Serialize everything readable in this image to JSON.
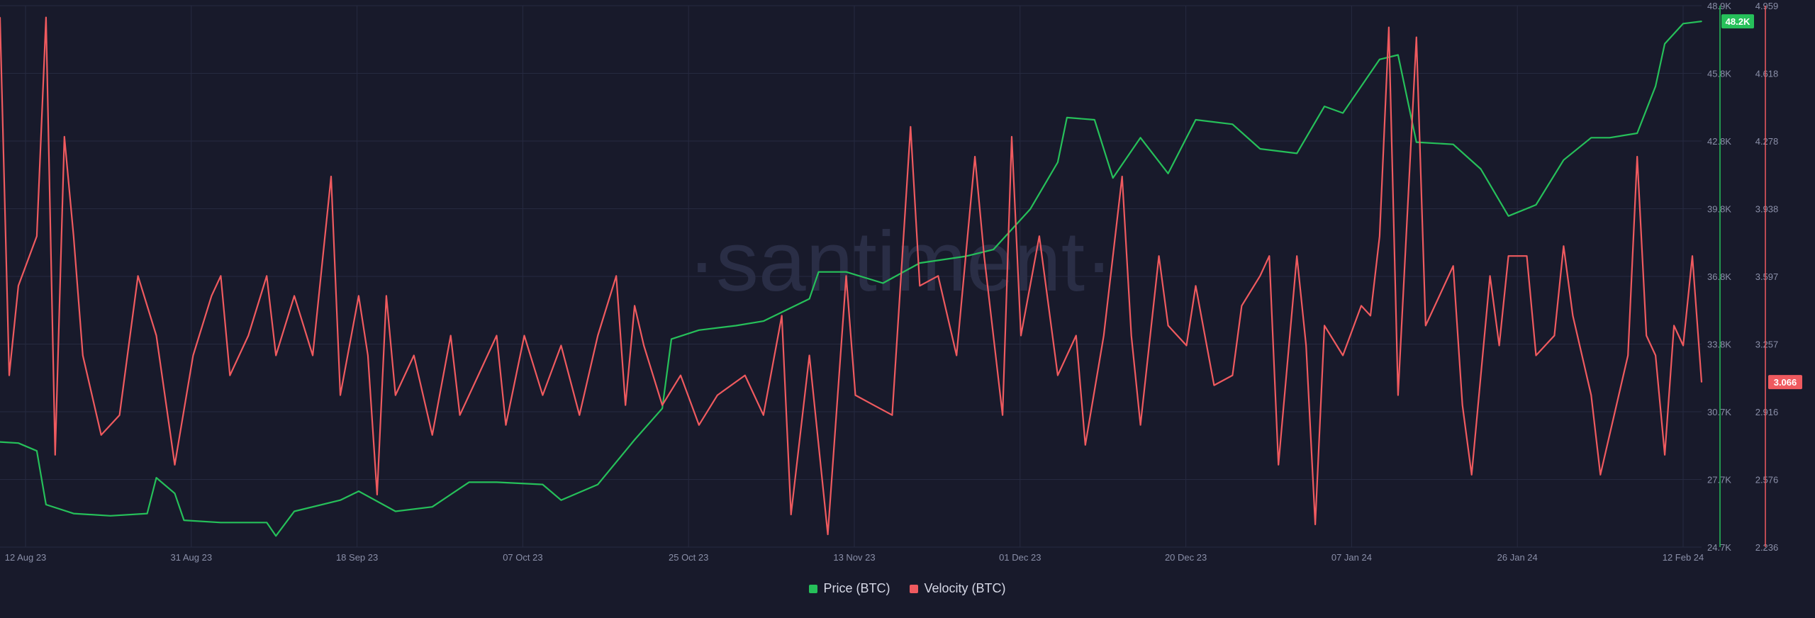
{
  "watermark": "·santiment·",
  "colors": {
    "background": "#181a2b",
    "grid": "#262a40",
    "price": "#26c05a",
    "velocity": "#ef5a5f",
    "axis_text": "#8a8fa8"
  },
  "price_axis_ticks": [
    "48.9K",
    "45.8K",
    "42.8K",
    "39.8K",
    "36.8K",
    "33.8K",
    "30.7K",
    "27.7K",
    "24.7K"
  ],
  "velocity_axis_ticks": [
    "4.959",
    "4.618",
    "4.278",
    "3.938",
    "3.597",
    "3.257",
    "2.916",
    "2.576",
    "2.236"
  ],
  "price_badge": "48.2K",
  "velocity_badge": "3.066",
  "legend": [
    {
      "label": "Price (BTC)",
      "color": "#26c05a"
    },
    {
      "label": "Velocity (BTC)",
      "color": "#ef5a5f"
    }
  ],
  "chart_data": {
    "type": "line",
    "x_start": "2023-08-12",
    "x_end": "2024-02-13",
    "x_tick_labels": [
      "12 Aug 23",
      "31 Aug 23",
      "18 Sep 23",
      "07 Oct 23",
      "25 Oct 23",
      "13 Nov 23",
      "01 Dec 23",
      "20 Dec 23",
      "07 Jan 24",
      "26 Jan 24",
      "12 Feb 24"
    ],
    "y_left_range": [
      24700,
      48900
    ],
    "y_right_range": [
      2.236,
      4.959
    ],
    "grid": true,
    "legend_position": "bottom",
    "series": [
      {
        "name": "Price (BTC)",
        "axis": "left",
        "points": [
          [
            "2023-08-12",
            29400
          ],
          [
            "2023-08-14",
            29350
          ],
          [
            "2023-08-16",
            29000
          ],
          [
            "2023-08-17",
            26600
          ],
          [
            "2023-08-20",
            26200
          ],
          [
            "2023-08-24",
            26100
          ],
          [
            "2023-08-28",
            26200
          ],
          [
            "2023-08-29",
            27800
          ],
          [
            "2023-08-31",
            27100
          ],
          [
            "2023-09-01",
            25900
          ],
          [
            "2023-09-05",
            25800
          ],
          [
            "2023-09-10",
            25800
          ],
          [
            "2023-09-11",
            25200
          ],
          [
            "2023-09-13",
            26300
          ],
          [
            "2023-09-18",
            26800
          ],
          [
            "2023-09-20",
            27200
          ],
          [
            "2023-09-24",
            26300
          ],
          [
            "2023-09-28",
            26500
          ],
          [
            "2023-10-02",
            27600
          ],
          [
            "2023-10-05",
            27600
          ],
          [
            "2023-10-10",
            27500
          ],
          [
            "2023-10-12",
            26800
          ],
          [
            "2023-10-16",
            27500
          ],
          [
            "2023-10-20",
            29500
          ],
          [
            "2023-10-23",
            30900
          ],
          [
            "2023-10-24",
            34000
          ],
          [
            "2023-10-27",
            34400
          ],
          [
            "2023-10-31",
            34600
          ],
          [
            "2023-11-03",
            34800
          ],
          [
            "2023-11-08",
            35800
          ],
          [
            "2023-11-09",
            37000
          ],
          [
            "2023-11-12",
            37000
          ],
          [
            "2023-11-16",
            36500
          ],
          [
            "2023-11-20",
            37400
          ],
          [
            "2023-11-25",
            37700
          ],
          [
            "2023-11-28",
            38000
          ],
          [
            "2023-12-02",
            39800
          ],
          [
            "2023-12-05",
            41900
          ],
          [
            "2023-12-06",
            43900
          ],
          [
            "2023-12-09",
            43800
          ],
          [
            "2023-12-11",
            41200
          ],
          [
            "2023-12-14",
            43000
          ],
          [
            "2023-12-17",
            41400
          ],
          [
            "2023-12-20",
            43800
          ],
          [
            "2023-12-24",
            43600
          ],
          [
            "2023-12-27",
            42500
          ],
          [
            "2023-12-31",
            42300
          ],
          [
            "2024-01-03",
            44400
          ],
          [
            "2024-01-05",
            44100
          ],
          [
            "2024-01-09",
            46500
          ],
          [
            "2024-01-11",
            46700
          ],
          [
            "2024-01-13",
            42800
          ],
          [
            "2024-01-17",
            42700
          ],
          [
            "2024-01-20",
            41600
          ],
          [
            "2024-01-23",
            39500
          ],
          [
            "2024-01-26",
            40000
          ],
          [
            "2024-01-29",
            42000
          ],
          [
            "2024-02-01",
            43000
          ],
          [
            "2024-02-03",
            43000
          ],
          [
            "2024-02-06",
            43200
          ],
          [
            "2024-02-08",
            45300
          ],
          [
            "2024-02-09",
            47200
          ],
          [
            "2024-02-11",
            48100
          ],
          [
            "2024-02-13",
            48200
          ]
        ]
      },
      {
        "name": "Velocity (BTC)",
        "axis": "right",
        "points": [
          [
            "2023-08-12",
            4.9
          ],
          [
            "2023-08-13",
            3.1
          ],
          [
            "2023-08-14",
            3.55
          ],
          [
            "2023-08-16",
            3.8
          ],
          [
            "2023-08-17",
            4.9
          ],
          [
            "2023-08-18",
            2.7
          ],
          [
            "2023-08-19",
            4.3
          ],
          [
            "2023-08-20",
            3.8
          ],
          [
            "2023-08-21",
            3.2
          ],
          [
            "2023-08-23",
            2.8
          ],
          [
            "2023-08-25",
            2.9
          ],
          [
            "2023-08-27",
            3.6
          ],
          [
            "2023-08-29",
            3.3
          ],
          [
            "2023-08-31",
            2.65
          ],
          [
            "2023-09-02",
            3.2
          ],
          [
            "2023-09-04",
            3.5
          ],
          [
            "2023-09-05",
            3.6
          ],
          [
            "2023-09-06",
            3.1
          ],
          [
            "2023-09-08",
            3.3
          ],
          [
            "2023-09-10",
            3.6
          ],
          [
            "2023-09-11",
            3.2
          ],
          [
            "2023-09-13",
            3.5
          ],
          [
            "2023-09-15",
            3.2
          ],
          [
            "2023-09-17",
            4.1
          ],
          [
            "2023-09-18",
            3.0
          ],
          [
            "2023-09-20",
            3.5
          ],
          [
            "2023-09-21",
            3.2
          ],
          [
            "2023-09-22",
            2.5
          ],
          [
            "2023-09-23",
            3.5
          ],
          [
            "2023-09-24",
            3.0
          ],
          [
            "2023-09-26",
            3.2
          ],
          [
            "2023-09-28",
            2.8
          ],
          [
            "2023-09-30",
            3.3
          ],
          [
            "2023-10-01",
            2.9
          ],
          [
            "2023-10-03",
            3.1
          ],
          [
            "2023-10-05",
            3.3
          ],
          [
            "2023-10-06",
            2.85
          ],
          [
            "2023-10-08",
            3.3
          ],
          [
            "2023-10-10",
            3.0
          ],
          [
            "2023-10-12",
            3.25
          ],
          [
            "2023-10-14",
            2.9
          ],
          [
            "2023-10-16",
            3.3
          ],
          [
            "2023-10-18",
            3.6
          ],
          [
            "2023-10-19",
            2.95
          ],
          [
            "2023-10-20",
            3.45
          ],
          [
            "2023-10-21",
            3.25
          ],
          [
            "2023-10-23",
            2.95
          ],
          [
            "2023-10-25",
            3.1
          ],
          [
            "2023-10-27",
            2.85
          ],
          [
            "2023-10-29",
            3.0
          ],
          [
            "2023-11-01",
            3.1
          ],
          [
            "2023-11-03",
            2.9
          ],
          [
            "2023-11-05",
            3.4
          ],
          [
            "2023-11-06",
            2.4
          ],
          [
            "2023-11-08",
            3.2
          ],
          [
            "2023-11-10",
            2.3
          ],
          [
            "2023-11-12",
            3.6
          ],
          [
            "2023-11-13",
            3.0
          ],
          [
            "2023-11-15",
            2.95
          ],
          [
            "2023-11-17",
            2.9
          ],
          [
            "2023-11-19",
            4.35
          ],
          [
            "2023-11-20",
            3.55
          ],
          [
            "2023-11-22",
            3.6
          ],
          [
            "2023-11-24",
            3.2
          ],
          [
            "2023-11-26",
            4.2
          ],
          [
            "2023-11-27",
            3.7
          ],
          [
            "2023-11-29",
            2.9
          ],
          [
            "2023-11-30",
            4.3
          ],
          [
            "2023-12-01",
            3.3
          ],
          [
            "2023-12-03",
            3.8
          ],
          [
            "2023-12-05",
            3.1
          ],
          [
            "2023-12-07",
            3.3
          ],
          [
            "2023-12-08",
            2.75
          ],
          [
            "2023-12-10",
            3.3
          ],
          [
            "2023-12-12",
            4.1
          ],
          [
            "2023-12-13",
            3.3
          ],
          [
            "2023-12-14",
            2.85
          ],
          [
            "2023-12-16",
            3.7
          ],
          [
            "2023-12-17",
            3.35
          ],
          [
            "2023-12-19",
            3.25
          ],
          [
            "2023-12-20",
            3.55
          ],
          [
            "2023-12-22",
            3.05
          ],
          [
            "2023-12-24",
            3.1
          ],
          [
            "2023-12-25",
            3.45
          ],
          [
            "2023-12-27",
            3.6
          ],
          [
            "2023-12-28",
            3.7
          ],
          [
            "2023-12-29",
            2.65
          ],
          [
            "2023-12-31",
            3.7
          ],
          [
            "2024-01-01",
            3.25
          ],
          [
            "2024-01-02",
            2.35
          ],
          [
            "2024-01-03",
            3.35
          ],
          [
            "2024-01-05",
            3.2
          ],
          [
            "2024-01-07",
            3.45
          ],
          [
            "2024-01-08",
            3.4
          ],
          [
            "2024-01-09",
            3.8
          ],
          [
            "2024-01-10",
            4.85
          ],
          [
            "2024-01-11",
            3.0
          ],
          [
            "2024-01-13",
            4.8
          ],
          [
            "2024-01-14",
            3.35
          ],
          [
            "2024-01-15",
            3.45
          ],
          [
            "2024-01-17",
            3.65
          ],
          [
            "2024-01-18",
            2.95
          ],
          [
            "2024-01-19",
            2.6
          ],
          [
            "2024-01-21",
            3.6
          ],
          [
            "2024-01-22",
            3.25
          ],
          [
            "2024-01-23",
            3.7
          ],
          [
            "2024-01-25",
            3.7
          ],
          [
            "2024-01-26",
            3.2
          ],
          [
            "2024-01-28",
            3.3
          ],
          [
            "2024-01-29",
            3.75
          ],
          [
            "2024-01-30",
            3.4
          ],
          [
            "2024-02-01",
            3.0
          ],
          [
            "2024-02-02",
            2.6
          ],
          [
            "2024-02-04",
            3.0
          ],
          [
            "2024-02-05",
            3.2
          ],
          [
            "2024-02-06",
            4.2
          ],
          [
            "2024-02-07",
            3.3
          ],
          [
            "2024-02-08",
            3.2
          ],
          [
            "2024-02-09",
            2.7
          ],
          [
            "2024-02-10",
            3.35
          ],
          [
            "2024-02-11",
            3.25
          ],
          [
            "2024-02-12",
            3.7
          ],
          [
            "2024-02-13",
            3.066
          ]
        ]
      }
    ]
  }
}
